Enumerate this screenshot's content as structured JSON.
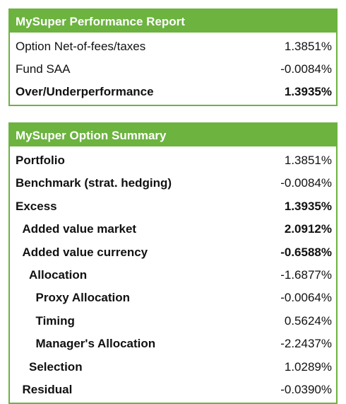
{
  "tables": [
    {
      "title": "MySuper Performance Report",
      "rows": [
        [
          "Option Net-of-fees/taxes",
          "1.3851%"
        ],
        [
          "Fund SAA",
          "-0.0084%"
        ],
        [
          "Over/Underperformance",
          "1.3935%"
        ]
      ]
    },
    {
      "title": "MySuper Option Summary",
      "rows": [
        [
          "Portfolio",
          "1.3851%"
        ],
        [
          "Benchmark (strat. hedging)",
          "-0.0084%"
        ],
        [
          "Excess",
          "1.3935%"
        ],
        [
          "Added value market",
          "2.0912%"
        ],
        [
          "Added value currency",
          "-0.6588%"
        ],
        [
          "Allocation",
          "-1.6877%"
        ],
        [
          "Proxy Allocation",
          "-0.0064%"
        ],
        [
          "Timing",
          "0.5624%"
        ],
        [
          "Manager's Allocation",
          "-2.2437%"
        ],
        [
          "Selection",
          "1.0289%"
        ],
        [
          "Residual",
          "-0.0390%"
        ]
      ]
    }
  ]
}
